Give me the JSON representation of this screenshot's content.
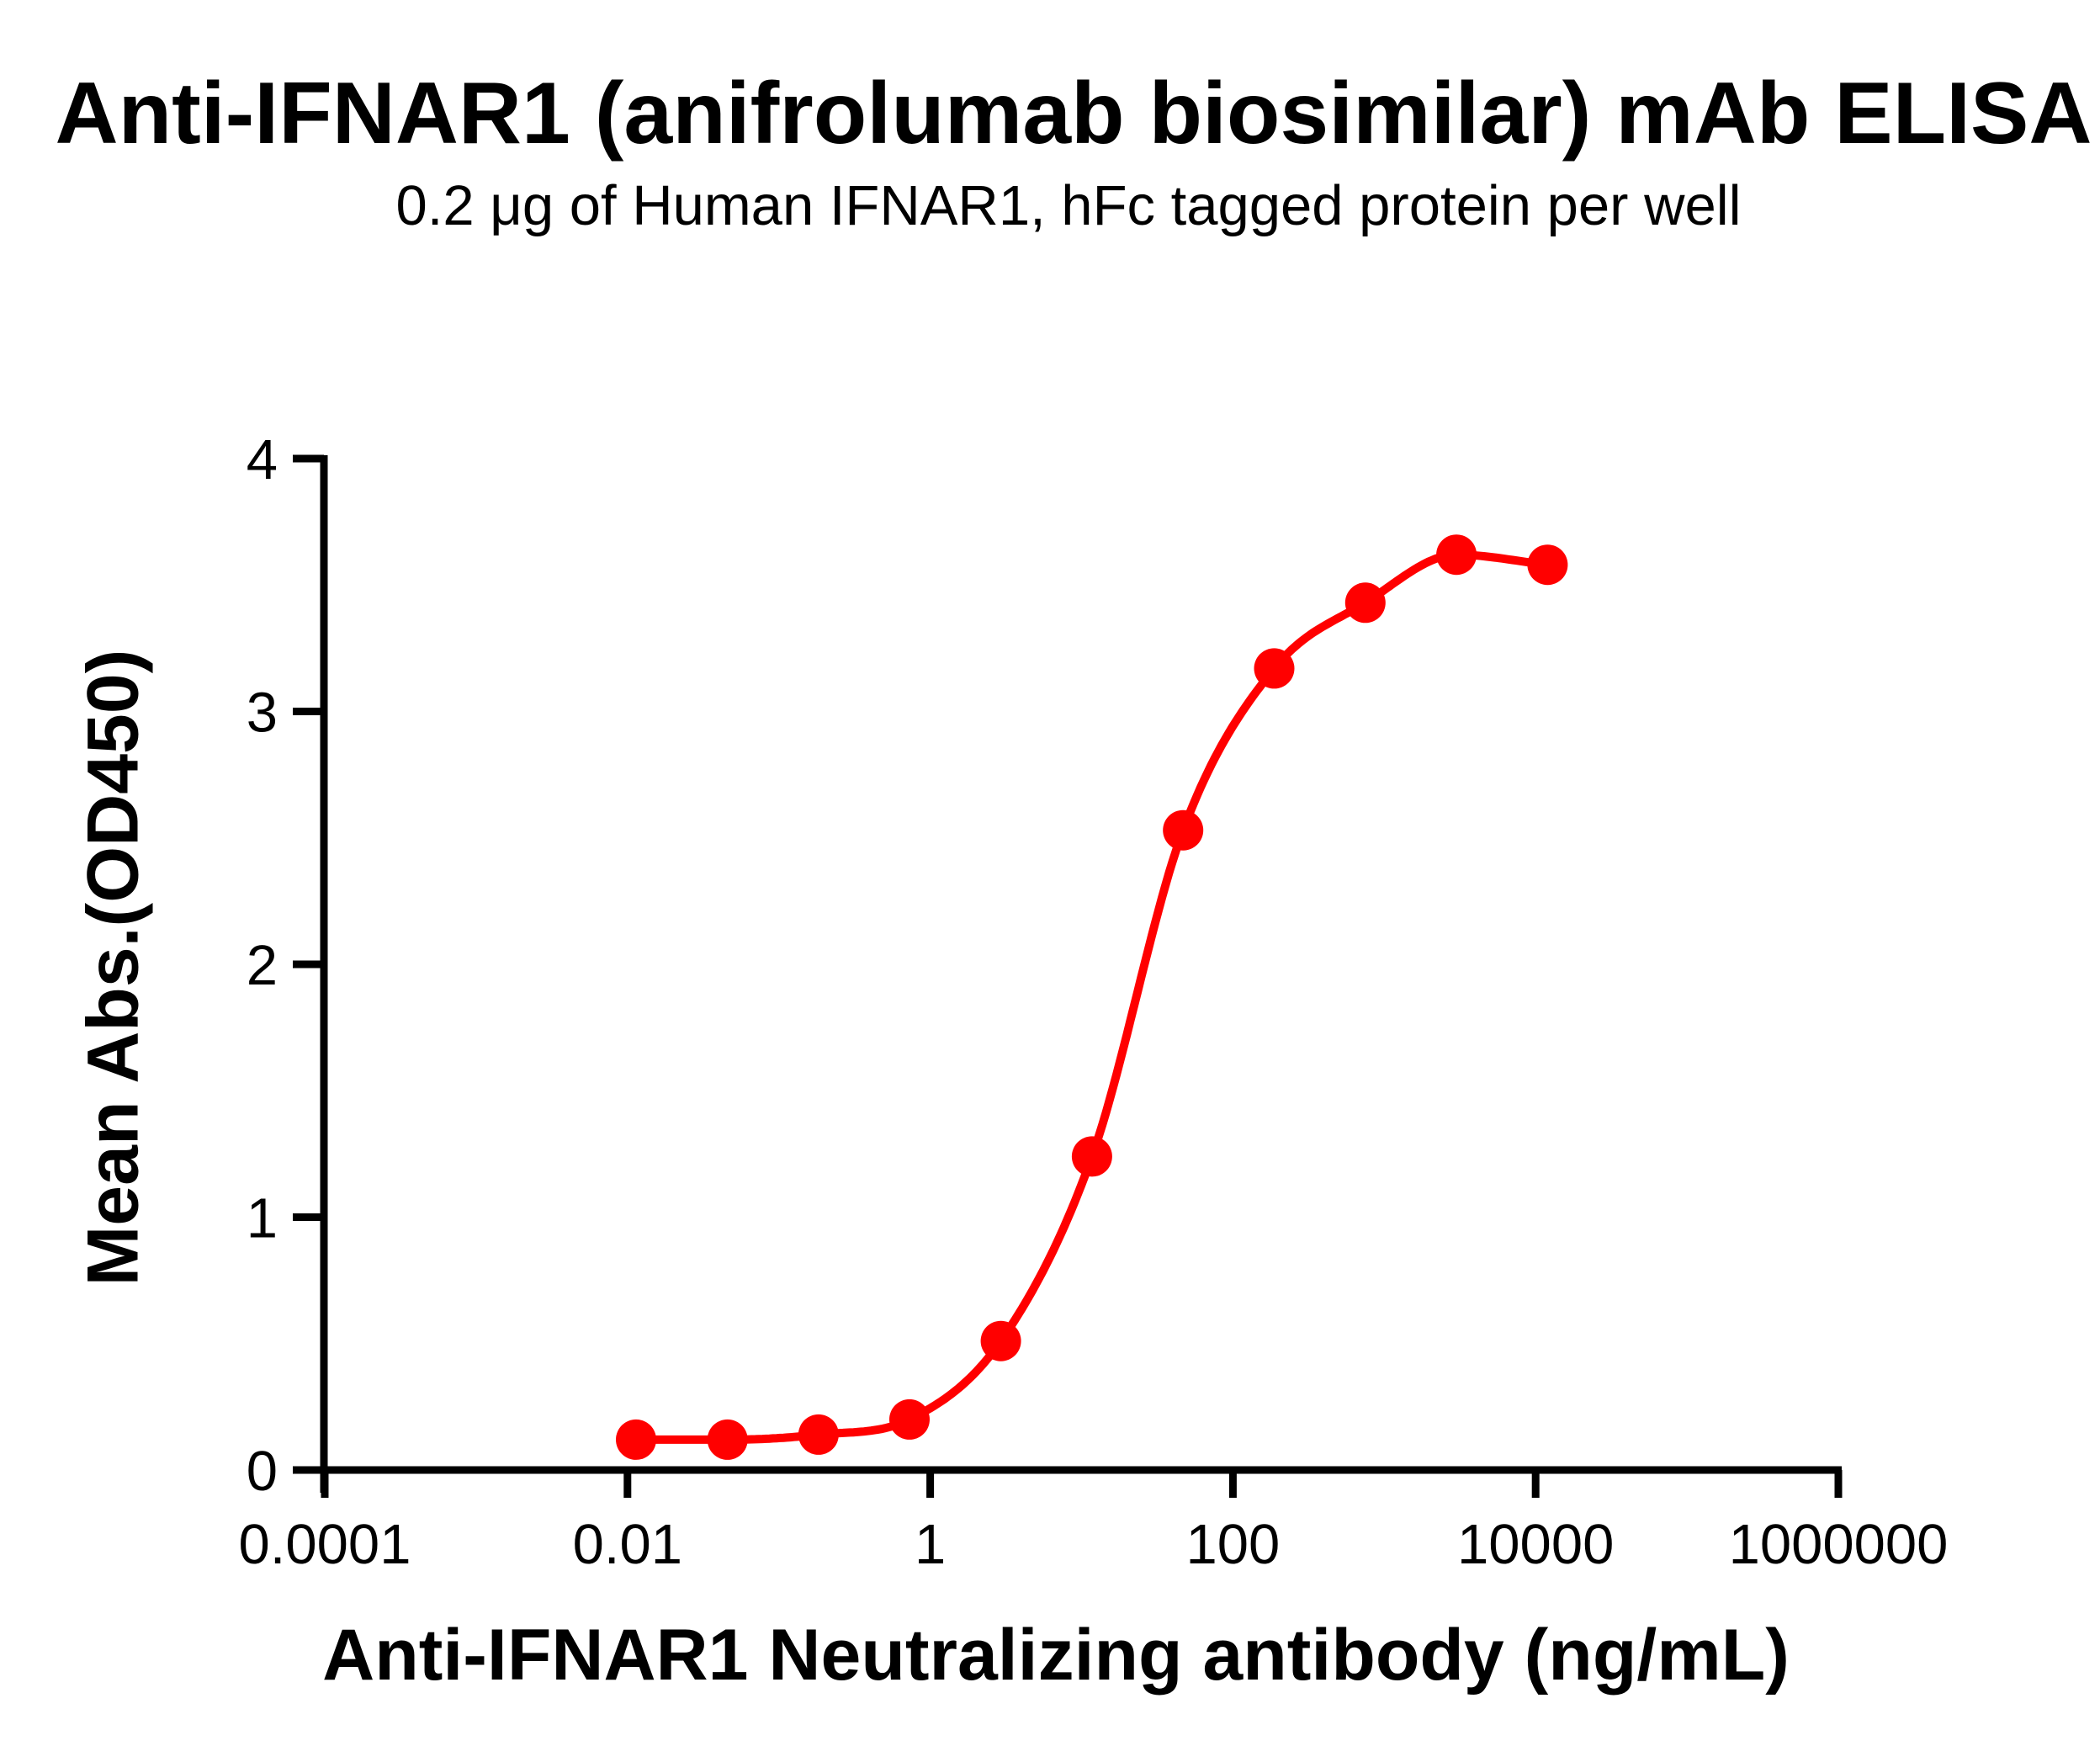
{
  "title": "Anti-IFNAR1 (anifrolumab biosimilar) mAb ELISA",
  "subtitle": "0.2 μg of Human IFNAR1, hFc tagged protein per well",
  "chart_data": {
    "type": "scatter",
    "fit_curve": "4PL sigmoid (dose-response)",
    "x_scale": "log10",
    "title": "Anti-IFNAR1 (anifrolumab biosimilar) mAb ELISA",
    "subtitle": "0.2 μg of Human IFNAR1, hFc tagged protein per well",
    "xlabel": "Anti-IFNAR1 Neutralizing antibody (ng/mL)",
    "ylabel": "Mean Abs.(OD450)",
    "xlim_log": [
      -4,
      6
    ],
    "ylim": [
      0,
      4
    ],
    "grid": false,
    "legend": "none",
    "x_ticks": [
      {
        "label": "0.0001",
        "value": 0.0001
      },
      {
        "label": "0.01",
        "value": 0.01
      },
      {
        "label": "1",
        "value": 1
      },
      {
        "label": "100",
        "value": 100
      },
      {
        "label": "10000",
        "value": 10000
      },
      {
        "label": "1000000",
        "value": 1000000
      }
    ],
    "y_ticks": [
      {
        "label": "0",
        "value": 0
      },
      {
        "label": "1",
        "value": 1
      },
      {
        "label": "2",
        "value": 2
      },
      {
        "label": "3",
        "value": 3
      },
      {
        "label": "4",
        "value": 4
      }
    ],
    "series_name": "Anti-IFNAR1 neutralizing antibody",
    "series_color": "#ff0000",
    "points": [
      {
        "x": 0.0114,
        "y": 0.12
      },
      {
        "x": 0.0458,
        "y": 0.12
      },
      {
        "x": 0.183,
        "y": 0.14
      },
      {
        "x": 0.73,
        "y": 0.2
      },
      {
        "x": 2.93,
        "y": 0.51
      },
      {
        "x": 11.72,
        "y": 1.24
      },
      {
        "x": 46.88,
        "y": 2.53
      },
      {
        "x": 187.5,
        "y": 3.17
      },
      {
        "x": 750,
        "y": 3.43
      },
      {
        "x": 3000,
        "y": 3.62
      },
      {
        "x": 12000,
        "y": 3.58
      }
    ]
  }
}
